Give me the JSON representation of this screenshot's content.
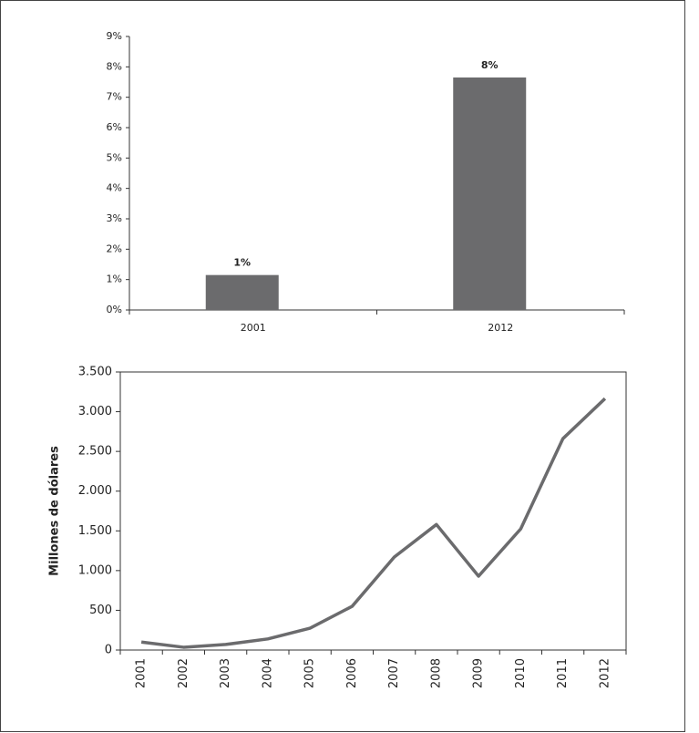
{
  "chart_data": [
    {
      "type": "bar",
      "categories": [
        "2001",
        "2012"
      ],
      "values": [
        1.15,
        7.65
      ],
      "value_labels": [
        "1%",
        "8%"
      ],
      "color": "#6b6b6d",
      "ylim": [
        0,
        9
      ],
      "yticks": [
        {
          "value": 0,
          "label": "0%"
        },
        {
          "value": 1,
          "label": "1%"
        },
        {
          "value": 2,
          "label": "2%"
        },
        {
          "value": 3,
          "label": "3%"
        },
        {
          "value": 4,
          "label": "4%"
        },
        {
          "value": 5,
          "label": "5%"
        },
        {
          "value": 6,
          "label": "6%"
        },
        {
          "value": 7,
          "label": "7%"
        },
        {
          "value": 8,
          "label": "8%"
        },
        {
          "value": 9,
          "label": "9%"
        }
      ]
    },
    {
      "type": "line",
      "ylabel": "Millones de dólares",
      "categories": [
        "2001",
        "2002",
        "2003",
        "2004",
        "2005",
        "2006",
        "2007",
        "2008",
        "2009",
        "2010",
        "2011",
        "2012"
      ],
      "values": [
        100,
        35,
        70,
        140,
        275,
        550,
        1170,
        1580,
        930,
        1525,
        2660,
        3165
      ],
      "color": "#6b6b6d",
      "ylim": [
        0,
        3500
      ],
      "yticks": [
        0,
        500,
        {
          "value": 1000,
          "label": "1.000"
        },
        {
          "value": 1500,
          "label": "1.500"
        },
        {
          "value": 2000,
          "label": "2.000"
        },
        {
          "value": 2500,
          "label": "2.500"
        },
        {
          "value": 3000,
          "label": "3.000"
        },
        {
          "value": 3500,
          "label": "3.500"
        }
      ]
    }
  ]
}
